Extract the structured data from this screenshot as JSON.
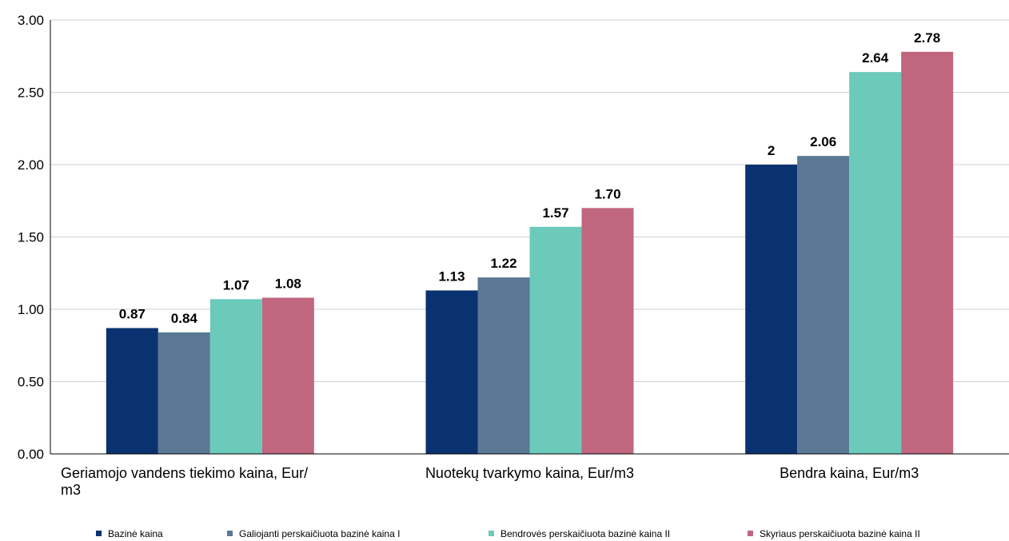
{
  "chart_data": {
    "type": "bar",
    "categories": [
      [
        "Geriamojo vandens tiekimo kaina, Eur/",
        "m3"
      ],
      [
        "Nuotekų tvarkymo kaina, Eur/m3"
      ],
      [
        "Bendra kaina, Eur/m3"
      ]
    ],
    "series": [
      {
        "name": "Bazinė kaina",
        "values": [
          0.87,
          1.13,
          2
        ],
        "labels": [
          "0.87",
          "1.13",
          "2"
        ],
        "color": "#0a3270"
      },
      {
        "name": "Galiojanti perskaičiuota bazinė kaina I",
        "values": [
          0.84,
          1.22,
          2.06
        ],
        "labels": [
          "0.84",
          "1.22",
          "2.06"
        ],
        "color": "#5a7894"
      },
      {
        "name": "Bendrovės perskaičiuota bazinė kaina II",
        "values": [
          1.07,
          1.57,
          2.64
        ],
        "labels": [
          "1.07",
          "1.57",
          "2.64"
        ],
        "color": "#6ccabb"
      },
      {
        "name": "Skyriaus perskaičiuota bazinė kaina II",
        "values": [
          1.08,
          1.7,
          2.78
        ],
        "labels": [
          "1.08",
          "1.70",
          "2.78"
        ],
        "color": "#c1667f"
      }
    ],
    "yticks": [
      "0.00",
      "0.50",
      "1.00",
      "1.50",
      "2.00",
      "2.50",
      "3.00"
    ],
    "ylim": [
      0,
      3
    ],
    "grid": true,
    "legend_position": "bottom",
    "title": "",
    "xlabel": "",
    "ylabel": ""
  }
}
